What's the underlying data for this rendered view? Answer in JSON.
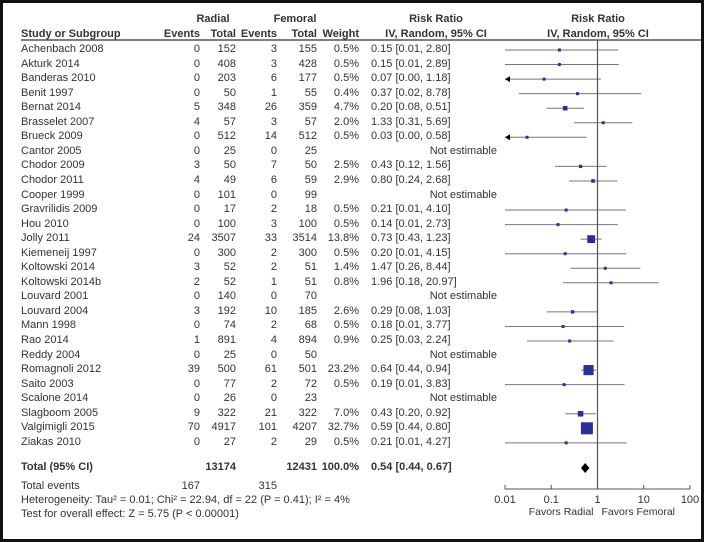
{
  "header": {
    "group1": "Radial",
    "group2": "Femoral",
    "rr_title": "Risk Ratio",
    "plot_title": "Risk Ratio",
    "col_study": "Study or Subgroup",
    "col_events1": "Events",
    "col_total1": "Total",
    "col_events2": "Events",
    "col_total2": "Total",
    "col_weight": "Weight",
    "col_rr": "IV, Random, 95% CI",
    "plot_subtitle": "IV, Random, 95% CI"
  },
  "footer": {
    "total_events_label": "Total events",
    "total_events_radial": "167",
    "total_events_femoral": "315",
    "heterogeneity": "Heterogeneity: Tau² = 0.01; Chi² = 22.94, df = 22 (P = 0.41); I² = 4%",
    "overall_effect": "Test for overall effect: Z = 5.75 (P < 0.00001)"
  },
  "chart_data": {
    "type": "forest",
    "xscale": "log",
    "xlim": [
      0.01,
      100
    ],
    "xticks": [
      "0.01",
      "0.1",
      "1",
      "10",
      "100"
    ],
    "xlabel_left": "Favors Radial",
    "xlabel_right": "Favors Femoral",
    "reference_line": 1,
    "studies": [
      {
        "study": "Achenbach 2008",
        "e1": "0",
        "n1": "152",
        "e2": "3",
        "n2": "155",
        "weight": "0.5%",
        "rr": 0.15,
        "lo": 0.01,
        "hi": 2.8,
        "text": "0.15 [0.01, 2.80]"
      },
      {
        "study": "Akturk 2014",
        "e1": "0",
        "n1": "408",
        "e2": "3",
        "n2": "428",
        "weight": "0.5%",
        "rr": 0.15,
        "lo": 0.01,
        "hi": 2.89,
        "text": "0.15 [0.01, 2.89]"
      },
      {
        "study": "Banderas 2010",
        "e1": "0",
        "n1": "203",
        "e2": "6",
        "n2": "177",
        "weight": "0.5%",
        "rr": 0.07,
        "lo": 0.0,
        "hi": 1.18,
        "text": "0.07 [0.00, 1.18]"
      },
      {
        "study": "Benit 1997",
        "e1": "0",
        "n1": "50",
        "e2": "1",
        "n2": "55",
        "weight": "0.4%",
        "rr": 0.37,
        "lo": 0.02,
        "hi": 8.78,
        "text": "0.37 [0.02, 8.78]"
      },
      {
        "study": "Bernat 2014",
        "e1": "5",
        "n1": "348",
        "e2": "26",
        "n2": "359",
        "weight": "4.7%",
        "rr": 0.2,
        "lo": 0.08,
        "hi": 0.51,
        "text": "0.20 [0.08, 0.51]"
      },
      {
        "study": "Brasselet 2007",
        "e1": "4",
        "n1": "57",
        "e2": "3",
        "n2": "57",
        "weight": "2.0%",
        "rr": 1.33,
        "lo": 0.31,
        "hi": 5.69,
        "text": "1.33 [0.31, 5.69]"
      },
      {
        "study": "Brueck 2009",
        "e1": "0",
        "n1": "512",
        "e2": "14",
        "n2": "512",
        "weight": "0.5%",
        "rr": 0.03,
        "lo": 0.0,
        "hi": 0.58,
        "text": "0.03 [0.00, 0.58]"
      },
      {
        "study": "Cantor 2005",
        "e1": "0",
        "n1": "25",
        "e2": "0",
        "n2": "25",
        "weight": "",
        "rr": null,
        "lo": null,
        "hi": null,
        "text": "Not estimable"
      },
      {
        "study": "Chodor 2009",
        "e1": "3",
        "n1": "50",
        "e2": "7",
        "n2": "50",
        "weight": "2.5%",
        "rr": 0.43,
        "lo": 0.12,
        "hi": 1.56,
        "text": "0.43 [0.12, 1.56]"
      },
      {
        "study": "Chodor 2011",
        "e1": "4",
        "n1": "49",
        "e2": "6",
        "n2": "59",
        "weight": "2.9%",
        "rr": 0.8,
        "lo": 0.24,
        "hi": 2.68,
        "text": "0.80 [0.24, 2.68]"
      },
      {
        "study": "Cooper 1999",
        "e1": "0",
        "n1": "101",
        "e2": "0",
        "n2": "99",
        "weight": "",
        "rr": null,
        "lo": null,
        "hi": null,
        "text": "Not estimable"
      },
      {
        "study": "Gravrilidis 2009",
        "e1": "0",
        "n1": "17",
        "e2": "2",
        "n2": "18",
        "weight": "0.5%",
        "rr": 0.21,
        "lo": 0.01,
        "hi": 4.1,
        "text": "0.21 [0.01, 4.10]"
      },
      {
        "study": "Hou 2010",
        "e1": "0",
        "n1": "100",
        "e2": "3",
        "n2": "100",
        "weight": "0.5%",
        "rr": 0.14,
        "lo": 0.01,
        "hi": 2.73,
        "text": "0.14 [0.01, 2.73]"
      },
      {
        "study": "Jolly 2011",
        "e1": "24",
        "n1": "3507",
        "e2": "33",
        "n2": "3514",
        "weight": "13.8%",
        "rr": 0.73,
        "lo": 0.43,
        "hi": 1.23,
        "text": "0.73 [0.43, 1.23]"
      },
      {
        "study": "Kiemeneij 1997",
        "e1": "0",
        "n1": "300",
        "e2": "2",
        "n2": "300",
        "weight": "0.5%",
        "rr": 0.2,
        "lo": 0.01,
        "hi": 4.15,
        "text": "0.20 [0.01, 4.15]"
      },
      {
        "study": "Koltowski 2014",
        "e1": "3",
        "n1": "52",
        "e2": "2",
        "n2": "51",
        "weight": "1.4%",
        "rr": 1.47,
        "lo": 0.26,
        "hi": 8.44,
        "text": "1.47 [0.26, 8.44]"
      },
      {
        "study": "Koltowski 2014b",
        "e1": "2",
        "n1": "52",
        "e2": "1",
        "n2": "51",
        "weight": "0.8%",
        "rr": 1.96,
        "lo": 0.18,
        "hi": 20.97,
        "text": "1.96 [0.18, 20.97]"
      },
      {
        "study": "Louvard 2001",
        "e1": "0",
        "n1": "140",
        "e2": "0",
        "n2": "70",
        "weight": "",
        "rr": null,
        "lo": null,
        "hi": null,
        "text": "Not estimable"
      },
      {
        "study": "Louvard 2004",
        "e1": "3",
        "n1": "192",
        "e2": "10",
        "n2": "185",
        "weight": "2.6%",
        "rr": 0.29,
        "lo": 0.08,
        "hi": 1.03,
        "text": "0.29 [0.08, 1.03]"
      },
      {
        "study": "Mann 1998",
        "e1": "0",
        "n1": "74",
        "e2": "2",
        "n2": "68",
        "weight": "0.5%",
        "rr": 0.18,
        "lo": 0.01,
        "hi": 3.77,
        "text": "0.18 [0.01, 3.77]"
      },
      {
        "study": "Rao 2014",
        "e1": "1",
        "n1": "891",
        "e2": "4",
        "n2": "894",
        "weight": "0.9%",
        "rr": 0.25,
        "lo": 0.03,
        "hi": 2.24,
        "text": "0.25 [0.03, 2.24]"
      },
      {
        "study": "Reddy 2004",
        "e1": "0",
        "n1": "25",
        "e2": "0",
        "n2": "50",
        "weight": "",
        "rr": null,
        "lo": null,
        "hi": null,
        "text": "Not estimable"
      },
      {
        "study": "Romagnoli 2012",
        "e1": "39",
        "n1": "500",
        "e2": "61",
        "n2": "501",
        "weight": "23.2%",
        "rr": 0.64,
        "lo": 0.44,
        "hi": 0.94,
        "text": "0.64 [0.44, 0.94]"
      },
      {
        "study": "Saito 2003",
        "e1": "0",
        "n1": "77",
        "e2": "2",
        "n2": "72",
        "weight": "0.5%",
        "rr": 0.19,
        "lo": 0.01,
        "hi": 3.83,
        "text": "0.19 [0.01, 3.83]"
      },
      {
        "study": "Scalone 2014",
        "e1": "0",
        "n1": "26",
        "e2": "0",
        "n2": "23",
        "weight": "",
        "rr": null,
        "lo": null,
        "hi": null,
        "text": "Not estimable"
      },
      {
        "study": "Slagboom 2005",
        "e1": "9",
        "n1": "322",
        "e2": "21",
        "n2": "322",
        "weight": "7.0%",
        "rr": 0.43,
        "lo": 0.2,
        "hi": 0.92,
        "text": "0.43 [0.20, 0.92]"
      },
      {
        "study": "Valgimigli 2015",
        "e1": "70",
        "n1": "4917",
        "e2": "101",
        "n2": "4207",
        "weight": "32.7%",
        "rr": 0.59,
        "lo": 0.44,
        "hi": 0.8,
        "text": "0.59 [0.44, 0.80]"
      },
      {
        "study": "Ziakas 2010",
        "e1": "0",
        "n1": "27",
        "e2": "2",
        "n2": "29",
        "weight": "0.5%",
        "rr": 0.21,
        "lo": 0.01,
        "hi": 4.27,
        "text": "0.21 [0.01, 4.27]"
      }
    ],
    "total": {
      "label": "Total (95% CI)",
      "n1": "13174",
      "n2": "12431",
      "weight": "100.0%",
      "rr": 0.54,
      "lo": 0.44,
      "hi": 0.67,
      "text": "0.54 [0.44, 0.67]"
    },
    "colors": {
      "point": "#2b2f9a",
      "ci": "#777777",
      "diamond": "#000000"
    }
  }
}
